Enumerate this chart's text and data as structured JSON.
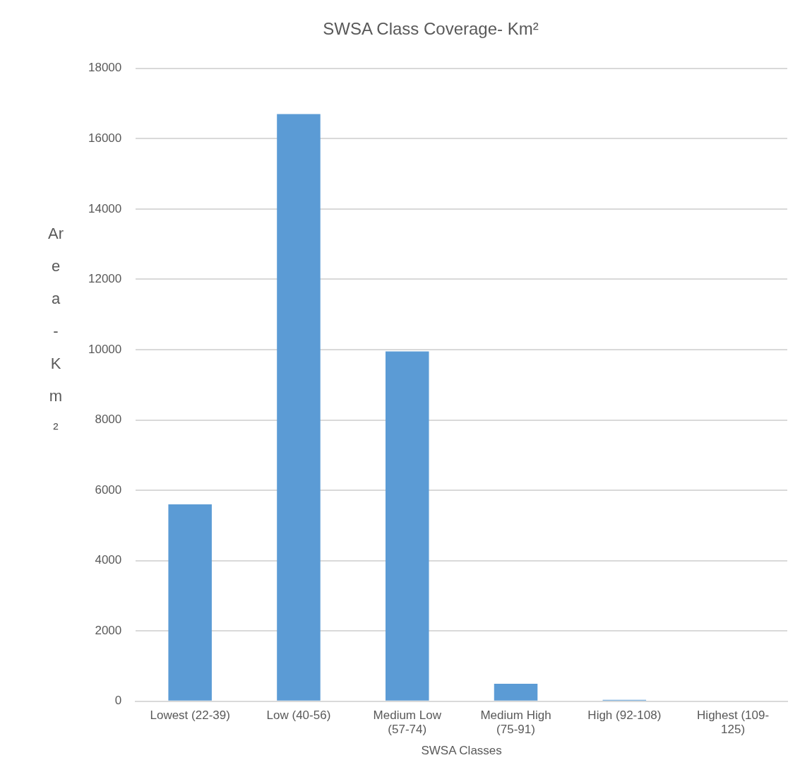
{
  "chart_data": {
    "type": "bar",
    "title": "SWSA Class Coverage- Km²",
    "xlabel": "SWSA Classes",
    "ylabel": "Area - Km²",
    "categories": [
      "Lowest (22-39)",
      "Low (40-56)",
      "Medium Low (57-74)",
      "Medium High (75-91)",
      "High (92-108)",
      "Highest (109-125)"
    ],
    "values": [
      5600,
      16700,
      9950,
      500,
      40,
      0
    ],
    "color": "#5b9bd5",
    "ylim": [
      0,
      18000
    ],
    "yticks": [
      0,
      2000,
      4000,
      6000,
      8000,
      10000,
      12000,
      14000,
      16000,
      18000
    ],
    "grid": "y",
    "legend": false
  }
}
